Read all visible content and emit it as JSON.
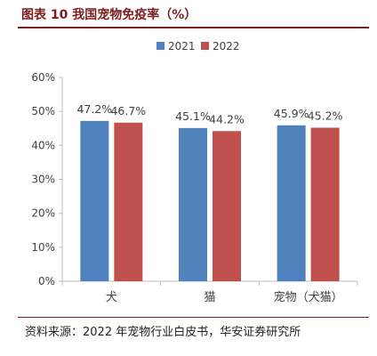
{
  "header": {
    "title": "图表 10 我国宠物免疫率（%）"
  },
  "footer": {
    "source": "资料来源：2022 年宠物行业白皮书，华安证券研究所"
  },
  "chart_data": {
    "type": "bar",
    "title": "",
    "xlabel": "",
    "ylabel": "",
    "categories": [
      "犬",
      "猫",
      "宠物（犬猫）"
    ],
    "series": [
      {
        "name": "2021",
        "values": [
          47.2,
          45.1,
          45.9
        ],
        "labels": [
          "47.2%",
          "45.1%",
          "45.9%"
        ],
        "color": "#4f81bd"
      },
      {
        "name": "2022",
        "values": [
          46.7,
          44.2,
          45.2
        ],
        "labels": [
          "46.7%",
          "44.2%",
          "45.2%"
        ],
        "color": "#c0504d"
      }
    ],
    "ylim": [
      0,
      60
    ],
    "yticks": [
      0,
      10,
      20,
      30,
      40,
      50,
      60
    ],
    "ytick_labels": [
      "0%",
      "10%",
      "20%",
      "30%",
      "40%",
      "50%",
      "60%"
    ],
    "grid": false,
    "legend": "top-center"
  }
}
